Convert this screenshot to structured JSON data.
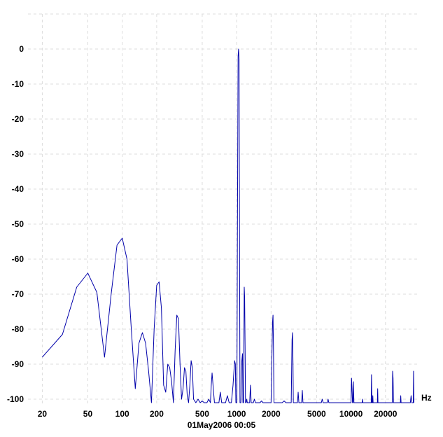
{
  "chart_data": {
    "type": "line",
    "x_scale": "log",
    "grid": true,
    "xlim": [
      15,
      40000
    ],
    "ylim": [
      -101,
      4
    ],
    "x_unit": "Hz",
    "timestamp": "01May2006  00:05",
    "x_ticks": [
      {
        "value": 20,
        "label": "20"
      },
      {
        "value": 50,
        "label": "50"
      },
      {
        "value": 100,
        "label": "100"
      },
      {
        "value": 200,
        "label": "200"
      },
      {
        "value": 500,
        "label": "500"
      },
      {
        "value": 1000,
        "label": "1000"
      },
      {
        "value": 2000,
        "label": "2000"
      },
      {
        "value": 5000,
        "label": "5000"
      },
      {
        "value": 10000,
        "label": "10000"
      },
      {
        "value": 20000,
        "label": "20000"
      }
    ],
    "y_ticks": [
      {
        "value": 0,
        "label": "0"
      },
      {
        "value": -10,
        "label": "-10"
      },
      {
        "value": -20,
        "label": "-20"
      },
      {
        "value": -30,
        "label": "-30"
      },
      {
        "value": -40,
        "label": "-40"
      },
      {
        "value": -50,
        "label": "-50"
      },
      {
        "value": -60,
        "label": "-60"
      },
      {
        "value": -70,
        "label": "-70"
      },
      {
        "value": -80,
        "label": "-80"
      },
      {
        "value": -90,
        "label": "-90"
      },
      {
        "value": -100,
        "label": "-100"
      }
    ],
    "series": [
      {
        "color": "#0000aa",
        "points": [
          [
            20,
            -88
          ],
          [
            30,
            -81.5
          ],
          [
            40,
            -68
          ],
          [
            50,
            -64
          ],
          [
            60,
            -69.5
          ],
          [
            70,
            -88
          ],
          [
            80,
            -70
          ],
          [
            90,
            -56
          ],
          [
            100,
            -54
          ],
          [
            110,
            -60
          ],
          [
            120,
            -80
          ],
          [
            130,
            -97
          ],
          [
            140,
            -84
          ],
          [
            150,
            -81
          ],
          [
            160,
            -84
          ],
          [
            170,
            -92
          ],
          [
            180,
            -101
          ],
          [
            190,
            -80
          ],
          [
            200,
            -67.5
          ],
          [
            210,
            -66.5
          ],
          [
            220,
            -74
          ],
          [
            230,
            -96
          ],
          [
            240,
            -98
          ],
          [
            250,
            -90
          ],
          [
            260,
            -91
          ],
          [
            270,
            -95
          ],
          [
            280,
            -101
          ],
          [
            290,
            -86
          ],
          [
            300,
            -76
          ],
          [
            310,
            -77
          ],
          [
            320,
            -90
          ],
          [
            330,
            -100
          ],
          [
            340,
            -97
          ],
          [
            350,
            -91
          ],
          [
            360,
            -92
          ],
          [
            370,
            -99
          ],
          [
            380,
            -101
          ],
          [
            390,
            -96
          ],
          [
            400,
            -89
          ],
          [
            410,
            -91
          ],
          [
            420,
            -100
          ],
          [
            440,
            -101
          ],
          [
            460,
            -100
          ],
          [
            480,
            -101
          ],
          [
            500,
            -100.5
          ],
          [
            520,
            -101
          ],
          [
            550,
            -101
          ],
          [
            570,
            -100
          ],
          [
            590,
            -101
          ],
          [
            600,
            -96
          ],
          [
            610,
            -92.5
          ],
          [
            625,
            -97
          ],
          [
            640,
            -101
          ],
          [
            700,
            -101
          ],
          [
            720,
            -98
          ],
          [
            740,
            -101
          ],
          [
            800,
            -101
          ],
          [
            830,
            -99
          ],
          [
            860,
            -101
          ],
          [
            900,
            -101
          ],
          [
            930,
            -96
          ],
          [
            960,
            -89
          ],
          [
            975,
            -90
          ],
          [
            985,
            -101
          ],
          [
            1005,
            -101
          ],
          [
            1015,
            -55
          ],
          [
            1030,
            -2
          ],
          [
            1040,
            0
          ],
          [
            1050,
            -3
          ],
          [
            1060,
            -55
          ],
          [
            1070,
            -101
          ],
          [
            1090,
            -101
          ],
          [
            1110,
            -89
          ],
          [
            1125,
            -87
          ],
          [
            1135,
            -101
          ],
          [
            1150,
            -101
          ],
          [
            1165,
            -68
          ],
          [
            1175,
            -71
          ],
          [
            1185,
            -85
          ],
          [
            1195,
            -101
          ],
          [
            1210,
            -101
          ],
          [
            1225,
            -100
          ],
          [
            1240,
            -101
          ],
          [
            1300,
            -101
          ],
          [
            1320,
            -96
          ],
          [
            1340,
            -101
          ],
          [
            1400,
            -101
          ],
          [
            1430,
            -100
          ],
          [
            1460,
            -101
          ],
          [
            1600,
            -101
          ],
          [
            1650,
            -100.5
          ],
          [
            1700,
            -101
          ],
          [
            2000,
            -101
          ],
          [
            2060,
            -78
          ],
          [
            2080,
            -76
          ],
          [
            2100,
            -86
          ],
          [
            2120,
            -101
          ],
          [
            2500,
            -101
          ],
          [
            2600,
            -100.5
          ],
          [
            2700,
            -101
          ],
          [
            3000,
            -101
          ],
          [
            3050,
            -83
          ],
          [
            3080,
            -81
          ],
          [
            3110,
            -90
          ],
          [
            3130,
            -101
          ],
          [
            3400,
            -101
          ],
          [
            3450,
            -98
          ],
          [
            3500,
            -101
          ],
          [
            3700,
            -101
          ],
          [
            3750,
            -97.5
          ],
          [
            3800,
            -101
          ],
          [
            5500,
            -101
          ],
          [
            5600,
            -100
          ],
          [
            5700,
            -101
          ],
          [
            6200,
            -101
          ],
          [
            6300,
            -100
          ],
          [
            6400,
            -101
          ],
          [
            10000,
            -101
          ],
          [
            10100,
            -94
          ],
          [
            10200,
            -97
          ],
          [
            10300,
            -101
          ],
          [
            10400,
            -101
          ],
          [
            10500,
            -95
          ],
          [
            10600,
            -101
          ],
          [
            12500,
            -101
          ],
          [
            12600,
            -100
          ],
          [
            12700,
            -101
          ],
          [
            15000,
            -101
          ],
          [
            15100,
            -93
          ],
          [
            15200,
            -101
          ],
          [
            15400,
            -101
          ],
          [
            15500,
            -99
          ],
          [
            15600,
            -101
          ],
          [
            17000,
            -101
          ],
          [
            17100,
            -97
          ],
          [
            17200,
            -101
          ],
          [
            23000,
            -101
          ],
          [
            23100,
            -92
          ],
          [
            23300,
            -94
          ],
          [
            23500,
            -101
          ],
          [
            27000,
            -101
          ],
          [
            27200,
            -99
          ],
          [
            27400,
            -101
          ],
          [
            33000,
            -101
          ],
          [
            33500,
            -99
          ],
          [
            34000,
            -101
          ],
          [
            35000,
            -101
          ],
          [
            35200,
            -92
          ],
          [
            35400,
            -101
          ]
        ]
      }
    ]
  }
}
